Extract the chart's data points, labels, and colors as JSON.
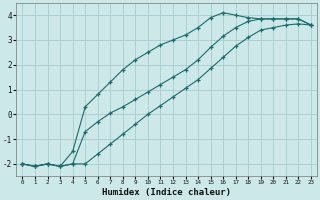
{
  "xlabel": "Humidex (Indice chaleur)",
  "background_color": "#cce8e8",
  "grid_color": "#aacccc",
  "line_color": "#1a6b6b",
  "x": [
    0,
    1,
    2,
    3,
    4,
    5,
    6,
    7,
    8,
    9,
    10,
    11,
    12,
    13,
    14,
    15,
    16,
    17,
    18,
    19,
    20,
    21,
    22,
    23
  ],
  "y_top": [
    -2.0,
    -2.1,
    -2.0,
    -2.1,
    -1.5,
    0.3,
    0.8,
    1.3,
    1.8,
    2.2,
    2.5,
    2.8,
    3.0,
    3.2,
    3.5,
    3.9,
    4.1,
    4.0,
    3.9,
    3.85,
    3.85,
    3.85,
    3.85,
    3.6
  ],
  "y_mid": [
    -2.0,
    -2.1,
    -2.0,
    -2.1,
    -2.0,
    -0.7,
    -0.3,
    0.05,
    0.3,
    0.6,
    0.9,
    1.2,
    1.5,
    1.8,
    2.2,
    2.7,
    3.15,
    3.5,
    3.75,
    3.85,
    3.85,
    3.85,
    3.85,
    3.6
  ],
  "y_bot": [
    -2.0,
    -2.1,
    -2.0,
    -2.1,
    -2.0,
    -2.0,
    -1.6,
    -1.2,
    -0.8,
    -0.4,
    0.0,
    0.35,
    0.7,
    1.05,
    1.4,
    1.85,
    2.3,
    2.75,
    3.1,
    3.4,
    3.5,
    3.6,
    3.65,
    3.6
  ],
  "ylim": [
    -2.5,
    4.5
  ],
  "xlim": [
    -0.5,
    23.5
  ],
  "yticks": [
    -2,
    -1,
    0,
    1,
    2,
    3,
    4
  ],
  "xticks": [
    0,
    1,
    2,
    3,
    4,
    5,
    6,
    7,
    8,
    9,
    10,
    11,
    12,
    13,
    14,
    15,
    16,
    17,
    18,
    19,
    20,
    21,
    22,
    23
  ]
}
